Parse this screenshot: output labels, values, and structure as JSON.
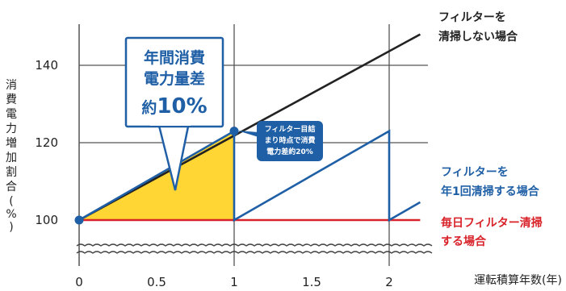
{
  "chart_data": {
    "type": "line",
    "title": "",
    "ylabel": "消費電力増加割合(%)",
    "xlabel": "運転積算年数(年)",
    "xlim": [
      0,
      2.2
    ],
    "ylim": [
      88,
      152
    ],
    "x_ticks": [
      "0",
      "0.5",
      "1",
      "1.5",
      "2"
    ],
    "y_ticks": [
      "100",
      "120",
      "140"
    ],
    "axis_break": true,
    "grid": true,
    "series": [
      {
        "name": "フィルターを清掃しない場合",
        "color": "#222222",
        "points": [
          [
            0,
            100
          ],
          [
            2.2,
            148
          ]
        ]
      },
      {
        "name": "フィルターを年1回清掃する場合",
        "color": "#1f5fa6",
        "points": [
          [
            0,
            100
          ],
          [
            1,
            123
          ],
          [
            1,
            100
          ],
          [
            2,
            123
          ],
          [
            2,
            100
          ],
          [
            2.2,
            104.6
          ]
        ]
      },
      {
        "name": "毎日フィルター清掃する場合",
        "color": "#d8232a",
        "points": [
          [
            0,
            100
          ],
          [
            2.2,
            100
          ]
        ]
      }
    ],
    "shaded_area": {
      "color": "#ffd633",
      "points": [
        [
          0,
          100
        ],
        [
          1,
          123
        ],
        [
          1,
          100
        ]
      ]
    },
    "markers": [
      {
        "x": 0,
        "y": 100,
        "color": "#1f5fa6"
      },
      {
        "x": 1,
        "y": 123,
        "color": "#1f5fa6"
      }
    ],
    "annotations": {
      "series_labels": {
        "black": [
          "フィルターを",
          "清掃しない場合"
        ],
        "blue": [
          "フィルターを",
          "年1回清掃する場合"
        ],
        "red": [
          "毎日フィルター清掃",
          "する場合"
        ]
      },
      "callout_main": [
        "年間消費",
        "電力量差"
      ],
      "callout_pct_prefix": "約",
      "callout_pct_value": "10%",
      "callout_small": [
        "フィルター目詰",
        "まり時点で消費",
        "電力差約20%"
      ]
    }
  }
}
